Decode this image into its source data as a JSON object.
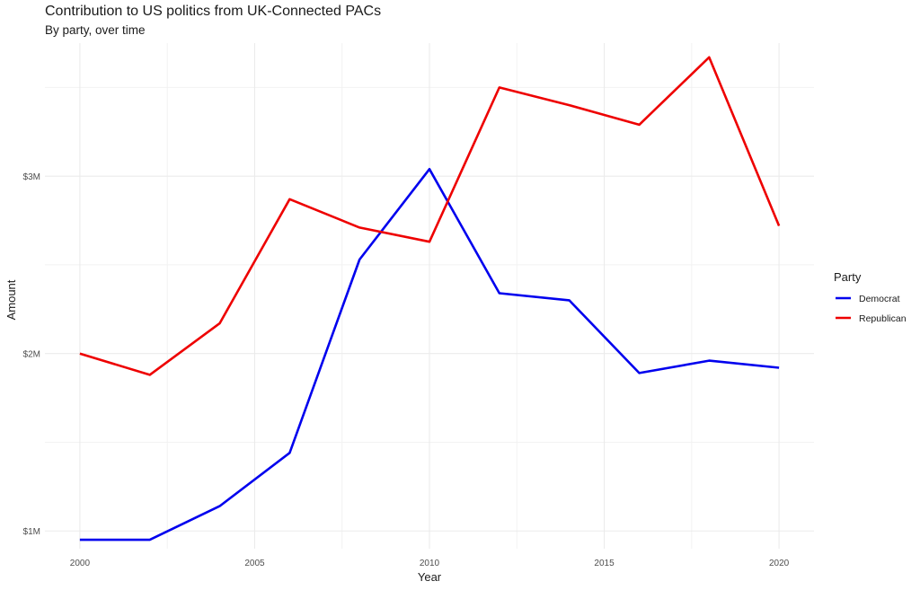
{
  "chart_data": {
    "type": "line",
    "title": "Contribution to US politics from UK-Connected PACs",
    "subtitle": "By party, over time",
    "xlabel": "Year",
    "ylabel": "Amount",
    "x": [
      2000,
      2002,
      2004,
      2006,
      2008,
      2010,
      2012,
      2014,
      2016,
      2018,
      2020
    ],
    "x_ticks": [
      2000,
      2005,
      2010,
      2015,
      2020
    ],
    "x_tick_labels": [
      "2000",
      "2005",
      "2010",
      "2015",
      "2020"
    ],
    "y_ticks": [
      1000000,
      2000000,
      3000000
    ],
    "y_tick_labels": [
      "$1M",
      "$2M",
      "$3M"
    ],
    "xlim": [
      1999,
      2021
    ],
    "ylim": [
      900000,
      3750000
    ],
    "grid": true,
    "legend": {
      "title": "Party",
      "position": "right"
    },
    "series": [
      {
        "name": "Democrat",
        "color": "#0000ee",
        "values": [
          950000,
          950000,
          1140000,
          1440000,
          2530000,
          3040000,
          2340000,
          2300000,
          1890000,
          1960000,
          1920000
        ]
      },
      {
        "name": "Republican",
        "color": "#ee0000",
        "values": [
          2000000,
          1880000,
          2170000,
          2870000,
          2710000,
          2630000,
          3500000,
          3400000,
          3290000,
          3670000,
          2720000
        ]
      }
    ]
  }
}
